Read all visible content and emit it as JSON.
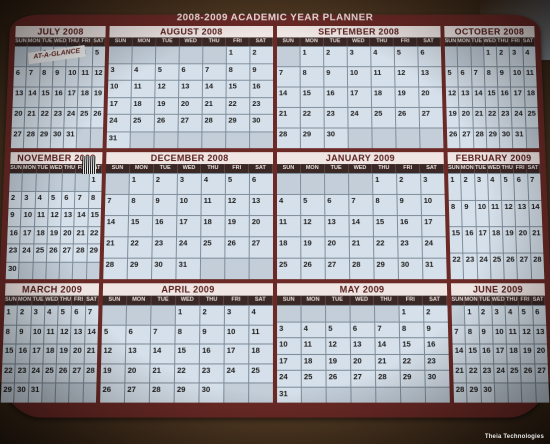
{
  "photo": {
    "planner_title": "2008-2009 ACADEMIC YEAR PLANNER",
    "brand": "AT-A-GLANCE",
    "watermark": "Theia Technologies"
  },
  "weekday_labels": [
    "SUN",
    "MON",
    "TUE",
    "WED",
    "THU",
    "FRI",
    "SAT"
  ],
  "months": [
    {
      "id": "july",
      "label": "JULY 2008",
      "start": 2,
      "days": 31,
      "edge": true
    },
    {
      "id": "august",
      "label": "AUGUST 2008",
      "start": 5,
      "days": 31,
      "edge": false
    },
    {
      "id": "september",
      "label": "SEPTEMBER 2008",
      "start": 1,
      "days": 30,
      "edge": false
    },
    {
      "id": "october",
      "label": "OCTOBER 2008",
      "start": 3,
      "days": 31,
      "edge": true
    },
    {
      "id": "november",
      "label": "NOVEMBER 2008",
      "start": 6,
      "days": 30,
      "edge": true
    },
    {
      "id": "december",
      "label": "DECEMBER 2008",
      "start": 1,
      "days": 31,
      "edge": false
    },
    {
      "id": "january",
      "label": "JANUARY 2009",
      "start": 4,
      "days": 31,
      "edge": false
    },
    {
      "id": "february",
      "label": "FEBRUARY 2009",
      "start": 0,
      "days": 28,
      "edge": true
    },
    {
      "id": "march",
      "label": "MARCH 2009",
      "start": 0,
      "days": 31,
      "edge": true
    },
    {
      "id": "april",
      "label": "APRIL 2009",
      "start": 3,
      "days": 30,
      "edge": false
    },
    {
      "id": "may",
      "label": "MAY 2009",
      "start": 5,
      "days": 31,
      "edge": false
    },
    {
      "id": "june",
      "label": "JUNE 2009",
      "start": 1,
      "days": 30,
      "edge": true
    }
  ]
}
